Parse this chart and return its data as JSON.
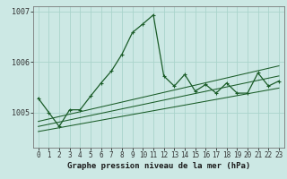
{
  "title": "Graphe pression niveau de la mer (hPa)",
  "bg_color": "#cce8e4",
  "grid_color": "#aad4cc",
  "line_color": "#1a5c28",
  "x_ticks": [
    0,
    1,
    2,
    3,
    4,
    5,
    6,
    7,
    8,
    9,
    10,
    11,
    12,
    13,
    14,
    15,
    16,
    17,
    18,
    19,
    20,
    21,
    22,
    23
  ],
  "ylim": [
    1004.3,
    1007.1
  ],
  "yticks": [
    1005,
    1006,
    1007
  ],
  "main_line_x": [
    0,
    1,
    2,
    3,
    4,
    5,
    6,
    7,
    8,
    9,
    10,
    11,
    12,
    13,
    14,
    15,
    16,
    17,
    18,
    19,
    20,
    21,
    22,
    23
  ],
  "main_line_y": [
    1005.28,
    1005.0,
    1004.72,
    1005.05,
    1005.05,
    1005.32,
    1005.58,
    1005.82,
    1006.15,
    1006.58,
    1006.75,
    1006.93,
    1005.72,
    1005.52,
    1005.75,
    1005.42,
    1005.55,
    1005.38,
    1005.58,
    1005.38,
    1005.38,
    1005.78,
    1005.52,
    1005.62
  ],
  "trend_lines": [
    {
      "x0": 0,
      "y0": 1004.62,
      "x1": 23,
      "y1": 1005.48
    },
    {
      "x0": 0,
      "y0": 1004.72,
      "x1": 23,
      "y1": 1005.72
    },
    {
      "x0": 0,
      "y0": 1004.82,
      "x1": 23,
      "y1": 1005.92
    }
  ],
  "bottom_label_color": "#1a1a1a",
  "tick_label_color": "#333333",
  "tick_fontsize": 5.5,
  "xlabel_fontsize": 6.5,
  "ytick_fontsize": 6.0
}
